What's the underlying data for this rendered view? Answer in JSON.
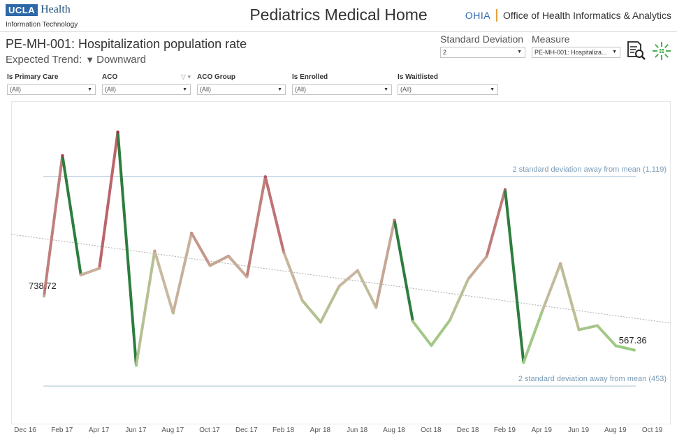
{
  "header": {
    "logo_ucla": "UCLA",
    "logo_health": "Health",
    "logo_sub": "Information Technology",
    "app_title": "Pediatrics Medical Home",
    "ohia_abbr": "OHIA",
    "ohia_name": "Office of Health Informatics & Analytics"
  },
  "metric": {
    "title": "PE-MH-001: Hospitalization population rate",
    "trend_label": "Expected Trend:",
    "trend_value": "Downward"
  },
  "params": {
    "std_dev_label": "Standard Deviation",
    "std_dev_value": "2",
    "measure_label": "Measure",
    "measure_value": "PE-MH-001: Hospitaliza..."
  },
  "icons": {
    "report": "report-search-icon",
    "brand": "brand-burst-icon"
  },
  "filters": [
    {
      "label": "Is Primary Care",
      "value": "(All)"
    },
    {
      "label": "ACO",
      "value": "(All)"
    },
    {
      "label": "ACO Group",
      "value": "(All)"
    },
    {
      "label": "Is Enrolled",
      "value": "(All)"
    },
    {
      "label": "Is Waitlisted",
      "value": "(All)"
    }
  ],
  "colors": {
    "high": "#b01c3c",
    "mid": "#c9b8a0",
    "low": "#8dd07a",
    "dark_low": "#2e7d3e",
    "reference": "#b9cfe0",
    "trend": "#aaaaaa"
  },
  "chart_data": {
    "type": "line",
    "x": [
      "Jan 17",
      "Feb 17",
      "Mar 17",
      "Apr 17",
      "May 17",
      "Jun 17",
      "Jul 17",
      "Aug 17",
      "Sep 17",
      "Oct 17",
      "Nov 17",
      "Dec 17",
      "Jan 18",
      "Feb 18",
      "Mar 18",
      "Apr 18",
      "May 18",
      "Jun 18",
      "Jul 18",
      "Aug 18",
      "Sep 18",
      "Oct 18",
      "Nov 18",
      "Dec 18",
      "Jan 19",
      "Feb 19",
      "Mar 19",
      "Apr 19",
      "May 19",
      "Jun 19",
      "Jul 19",
      "Aug 19",
      "Sep 19"
    ],
    "values": [
      738.72,
      1185,
      806,
      827,
      1260,
      519,
      882,
      685,
      939,
      836,
      866,
      800,
      1118,
      878,
      725,
      656,
      770,
      820,
      703,
      980,
      658,
      582,
      662,
      793,
      865,
      1077,
      528,
      689,
      842,
      632,
      645,
      581,
      567.36
    ],
    "x_ticks": [
      "Dec 16",
      "Feb 17",
      "Apr 17",
      "Jun 17",
      "Aug 17",
      "Oct 17",
      "Dec 17",
      "Feb 18",
      "Apr 18",
      "Jun 18",
      "Aug 18",
      "Oct 18",
      "Dec 18",
      "Feb 19",
      "Apr 19",
      "Jun 19",
      "Aug 19",
      "Oct 19"
    ],
    "ylim": [
      338,
      1358
    ],
    "first_label": "738.72",
    "last_label": "567.36",
    "trend_line": {
      "start": 935,
      "end": 653
    },
    "reference_lines": [
      {
        "value": 1119,
        "label": "2 standard deviation away from mean (1,119)"
      },
      {
        "value": 453,
        "label": "2 standard deviation away from mean (453)"
      }
    ],
    "grid": false,
    "legend": "none"
  }
}
